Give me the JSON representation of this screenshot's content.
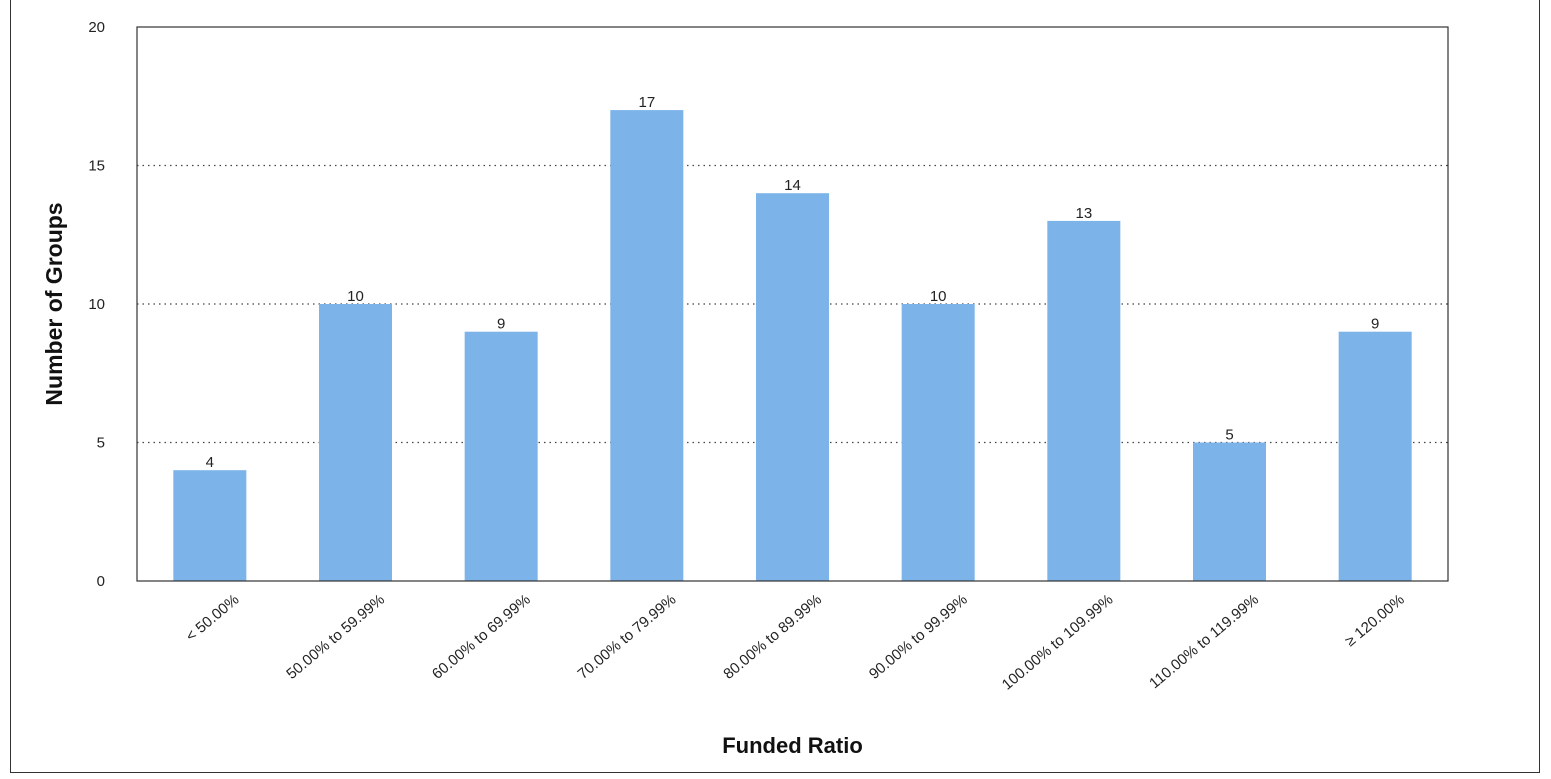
{
  "chart_data": {
    "type": "bar",
    "title": "",
    "xlabel": "Funded Ratio",
    "ylabel": "Number of Groups",
    "categories": [
      "< 50.00%",
      "50.00% to 59.99%",
      "60.00% to 69.99%",
      "70.00% to 79.99%",
      "80.00% to 89.99%",
      "90.00% to 99.99%",
      "100.00% to 109.99%",
      "110.00% to 119.99%",
      "≥ 120.00%"
    ],
    "values": [
      4,
      10,
      9,
      17,
      14,
      10,
      13,
      5,
      9
    ],
    "ylim": [
      0,
      20
    ],
    "yticks": [
      0,
      5,
      10,
      15,
      20
    ],
    "grid": "horizontal dotted",
    "legend": "none",
    "colors": {
      "bar": "#7cb3e9",
      "grid": "#444444",
      "axis": "#333333"
    }
  }
}
